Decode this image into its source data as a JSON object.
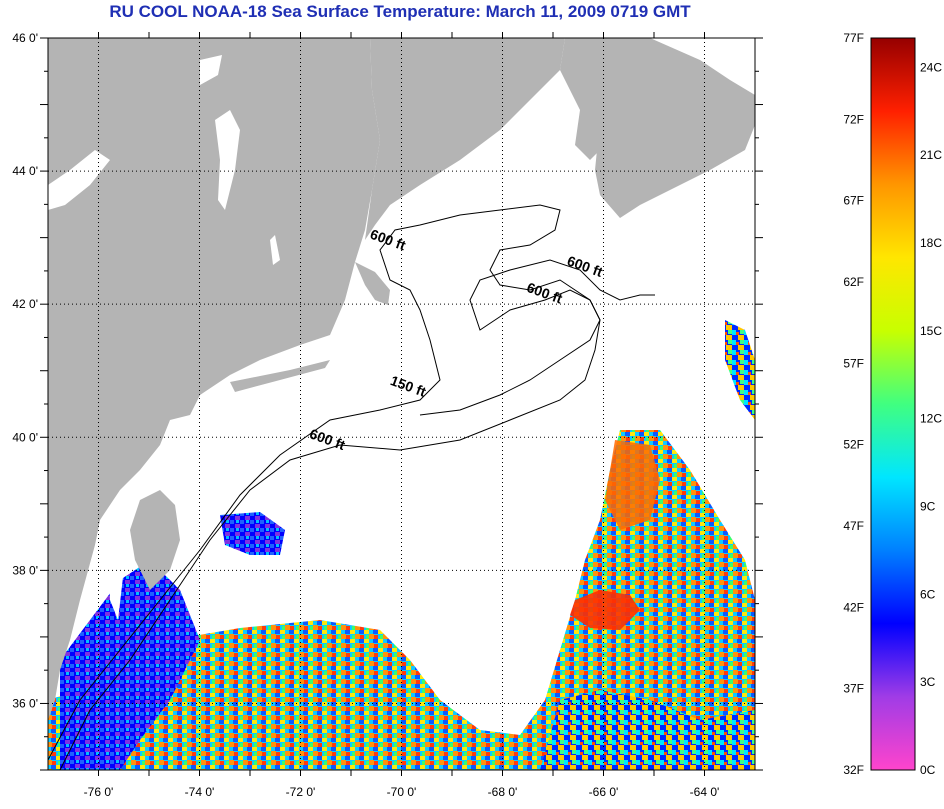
{
  "title": "RU COOL  NOAA-18  Sea Surface Temperature:  March 11, 2009 0719 GMT",
  "map": {
    "lon_range": [
      -77,
      -63
    ],
    "lat_range": [
      35,
      46
    ],
    "lat_ticks": [
      "46 0'",
      "44 0'",
      "42 0'",
      "40 0'",
      "38 0'",
      "36 0'"
    ],
    "lat_tick_values": [
      46,
      44,
      42,
      40,
      38,
      36
    ],
    "lon_ticks": [
      "-76 0'",
      "-74 0'",
      "-72 0'",
      "-70 0'",
      "-68 0'",
      "-66 0'",
      "-64 0'"
    ],
    "lon_tick_values": [
      -76,
      -74,
      -72,
      -70,
      -68,
      -66,
      -64
    ],
    "land_color": "#b4b4b4",
    "cloud_color": "#ffffff",
    "contour_labels": [
      {
        "text": "600 ft",
        "lon": -70.3,
        "lat": 42.9
      },
      {
        "text": "600 ft",
        "lon": -66.4,
        "lat": 42.5
      },
      {
        "text": "600 ft",
        "lon": -67.2,
        "lat": 42.1
      },
      {
        "text": "150 ft",
        "lon": -69.9,
        "lat": 40.7
      },
      {
        "text": "600 ft",
        "lon": -71.5,
        "lat": 39.9
      }
    ]
  },
  "colorbar": {
    "fahrenheit": [
      "77F",
      "72F",
      "67F",
      "62F",
      "57F",
      "52F",
      "47F",
      "42F",
      "37F",
      "32F"
    ],
    "fahrenheit_values": [
      77,
      72,
      67,
      62,
      57,
      52,
      47,
      42,
      37,
      32
    ],
    "celsius": [
      "24C",
      "21C",
      "18C",
      "15C",
      "12C",
      "9C",
      "6C",
      "3C",
      "0C"
    ],
    "celsius_values": [
      24,
      21,
      18,
      15,
      12,
      9,
      6,
      3,
      0
    ],
    "range_f": [
      32,
      77
    ],
    "stops": [
      "#ff44cc",
      "#a03ce6",
      "#0000ff",
      "#0080ff",
      "#00e6ff",
      "#40ff80",
      "#c8ff00",
      "#ffe600",
      "#ff9600",
      "#ff2000",
      "#960000"
    ]
  }
}
